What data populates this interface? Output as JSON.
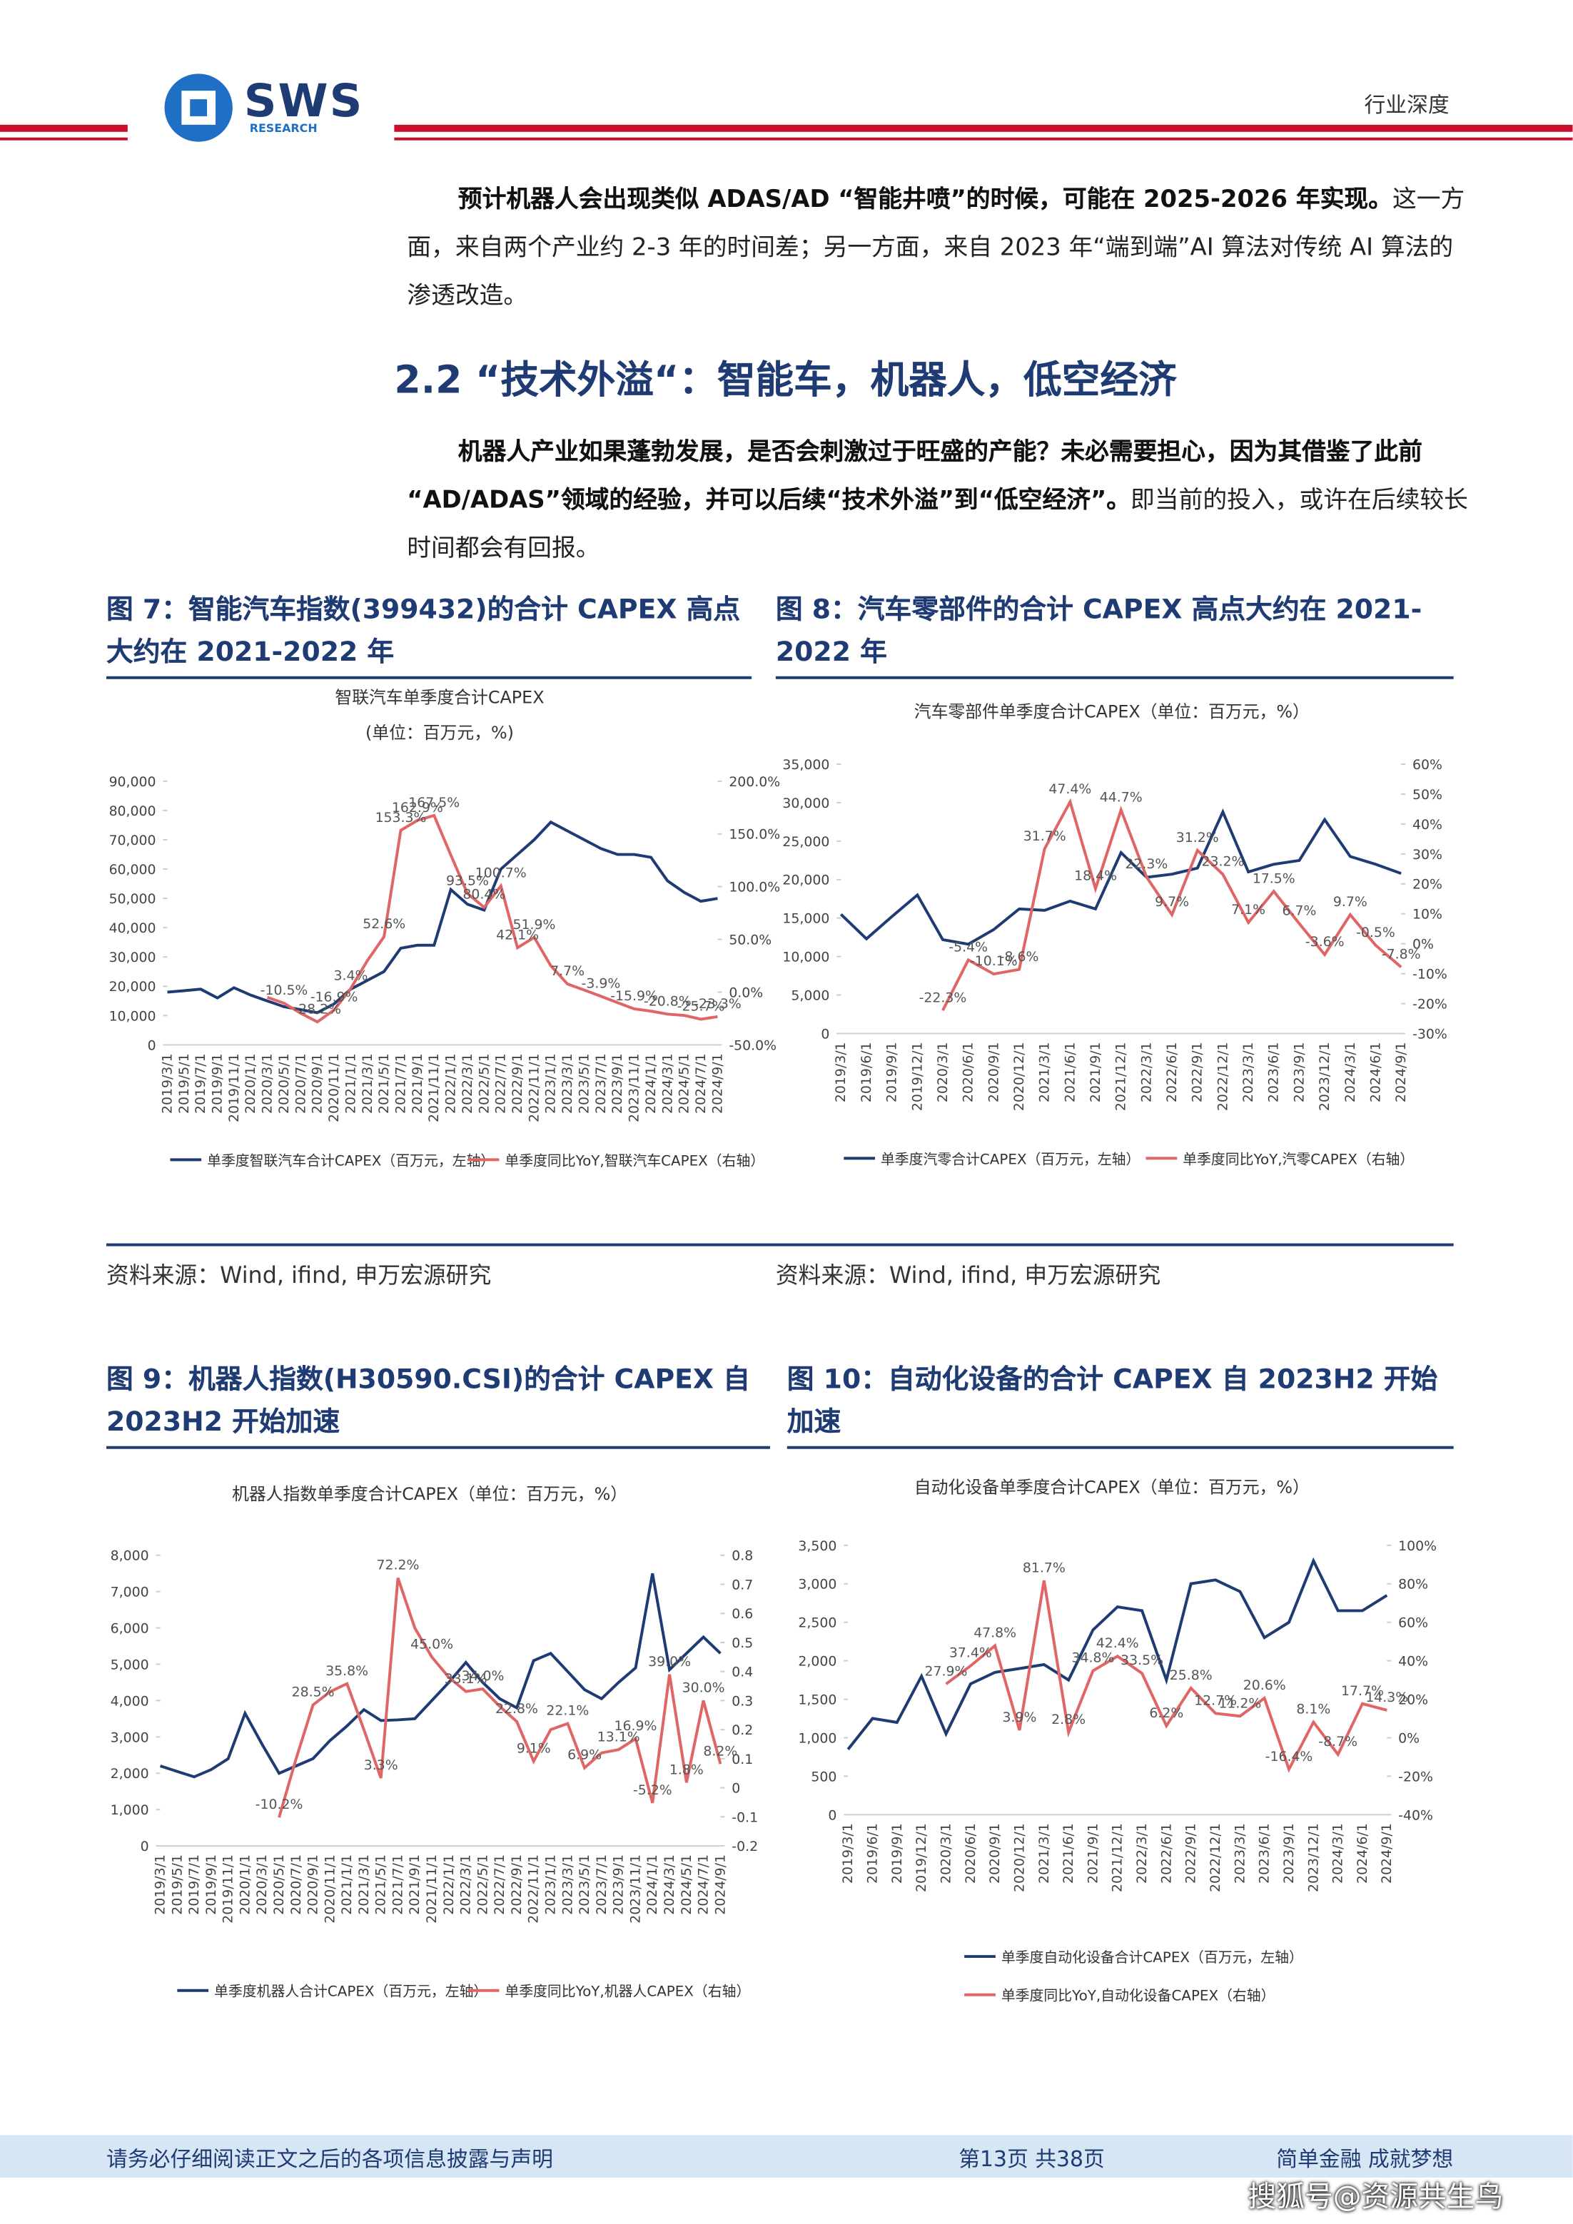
{
  "header": {
    "logo": "SWS",
    "logo_sub": "RESEARCH",
    "tag": "行业深度"
  },
  "intro": {
    "lead": "预计机器人会出现类似 ADAS/AD “智能井喷”的时候，可能在 2025-2026 年实现。",
    "text": "这一方面，来自两个产业约 2-3 年的时间差；另一方面，来自 2023 年“端到端”AI 算法对传统 AI 算法的渗透改造。"
  },
  "section": {
    "heading": "2.2 “技术外溢“：智能车，机器人，低空经济",
    "lead": "机器人产业如果蓬勃发展，是否会刺激过于旺盛的产能？未必需要担心，因为其借鉴了此前“AD/ADAS”领域的经验，并可以后续“技术外溢”到“低空经济”。",
    "text": "即当前的投入，或许在后续较长时间都会有回报。"
  },
  "figures": [
    {
      "title": "图 7：智能汽车指数(399432)的合计 CAPEX 高点大约在 2021-2022 年",
      "source": "资料来源：Wind, ifind, 申万宏源研究"
    },
    {
      "title": "图 8：汽车零部件的合计 CAPEX 高点大约在 2021-2022 年",
      "source": "资料来源：Wind, ifind, 申万宏源研究"
    },
    {
      "title": "图 9：机器人指数(H30590.CSI)的合计 CAPEX 自 2023H2 开始加速"
    },
    {
      "title": "图 10：自动化设备的合计 CAPEX 自 2023H2 开始加速"
    }
  ],
  "chart_data": [
    {
      "type": "line",
      "title": "智联汽车单季度合计CAPEX",
      "subtitle": "(单位：百万元，%)",
      "categories": [
        "2019/3/1",
        "2019/5/1",
        "2019/7/1",
        "2019/9/1",
        "2019/11/1",
        "2020/1/1",
        "2020/3/1",
        "2020/5/1",
        "2020/7/1",
        "2020/9/1",
        "2020/11/1",
        "2021/1/1",
        "2021/3/1",
        "2021/5/1",
        "2021/7/1",
        "2021/9/1",
        "2021/11/1",
        "2022/1/1",
        "2022/3/1",
        "2022/5/1",
        "2022/7/1",
        "2022/9/1",
        "2022/11/1",
        "2023/1/1",
        "2023/3/1",
        "2023/5/1",
        "2023/7/1",
        "2023/9/1",
        "2023/11/1",
        "2024/1/1",
        "2024/3/1",
        "2024/5/1",
        "2024/7/1",
        "2024/9/1"
      ],
      "series": [
        {
          "name": "单季度智联汽车合计CAPEX（百万元，左轴）",
          "color": "#1f3b73",
          "values": [
            18000,
            18500,
            19000,
            16000,
            19500,
            17000,
            15000,
            13000,
            12000,
            11000,
            14000,
            19000,
            22000,
            25000,
            33000,
            34000,
            34000,
            53000,
            48000,
            46000,
            60000,
            65000,
            70000,
            76000,
            73000,
            70000,
            67000,
            65000,
            65000,
            64000,
            56000,
            52000,
            49000,
            50000
          ]
        },
        {
          "name": "单季度同比YoY,智联汽车CAPEX（右轴）",
          "color": "#e06666",
          "axis": "y2",
          "values": [
            null,
            null,
            null,
            null,
            null,
            null,
            -5,
            -10.5,
            -20,
            -28.2,
            -16.9,
            3.4,
            30,
            52.6,
            153.3,
            162.9,
            167.5,
            130,
            93.5,
            80.4,
            100.7,
            42.1,
            51.9,
            25,
            7.7,
            2,
            -3.9,
            -10,
            -15.9,
            -18,
            -20.8,
            -22,
            -25.7,
            -23.3
          ],
          "value_labels": [
            null,
            null,
            null,
            null,
            null,
            null,
            null,
            "-10.5%",
            null,
            "-28.2%",
            "-16.9%",
            "3.4%",
            null,
            "52.6%",
            "153.3%",
            "162.9%",
            "167.5%",
            null,
            "93.5%",
            "80.4%",
            "100.7%",
            "42.1%",
            "51.9%",
            null,
            "7.7%",
            null,
            "-3.9%",
            null,
            "-15.9%",
            null,
            "-20.8%",
            null,
            "-25.7%",
            "-23.3%"
          ]
        }
      ],
      "ylim": [
        0,
        90000
      ],
      "yticks": [
        0,
        {
          "value": 10000,
          "label": "10,000"
        },
        {
          "value": 20000,
          "label": "20,000"
        },
        {
          "value": 30000,
          "label": "30,000"
        },
        {
          "value": 40000,
          "label": "40,000"
        },
        {
          "value": 50000,
          "label": "50,000"
        },
        {
          "value": 60000,
          "label": "60,000"
        },
        {
          "value": 70000,
          "label": "70,000"
        },
        {
          "value": 80000,
          "label": "80,000"
        },
        {
          "value": 90000,
          "label": "90,000"
        }
      ],
      "y2lim": [
        -50,
        200
      ],
      "y2ticks": [
        {
          "value": -50,
          "label": "-50.0%"
        },
        {
          "value": 0,
          "label": "0.0%"
        },
        {
          "value": 50,
          "label": "50.0%"
        },
        {
          "value": 100,
          "label": "100.0%"
        },
        {
          "value": 150,
          "label": "150.0%"
        },
        {
          "value": 200,
          "label": "200.0%"
        }
      ]
    },
    {
      "type": "line",
      "title": "汽车零部件单季度合计CAPEX（单位：百万元，%）",
      "categories": [
        "2019/3/1",
        "2019/6/1",
        "2019/9/1",
        "2019/12/1",
        "2020/3/1",
        "2020/6/1",
        "2020/9/1",
        "2020/12/1",
        "2021/3/1",
        "2021/6/1",
        "2021/9/1",
        "2021/12/1",
        "2022/3/1",
        "2022/6/1",
        "2022/9/1",
        "2022/12/1",
        "2023/3/1",
        "2023/6/1",
        "2023/9/1",
        "2023/12/1",
        "2024/3/1",
        "2024/6/1",
        "2024/9/1"
      ],
      "series": [
        {
          "name": "单季度汽零合计CAPEX（百万元，左轴）",
          "color": "#1f3b73",
          "values": [
            15500,
            12300,
            15200,
            18000,
            12200,
            11600,
            13500,
            16200,
            16000,
            17200,
            16200,
            23500,
            20300,
            20700,
            21500,
            28800,
            21000,
            22000,
            22500,
            27800,
            23000,
            22000,
            20800
          ]
        },
        {
          "name": "单季度同比YoY,汽零CAPEX（右轴）",
          "color": "#e06666",
          "axis": "y2",
          "values": [
            null,
            null,
            null,
            null,
            -22.3,
            -5.4,
            -10.1,
            -8.6,
            31.7,
            47.4,
            18.4,
            44.7,
            22.3,
            9.7,
            31.2,
            23.2,
            7.1,
            17.5,
            6.7,
            -3.6,
            9.7,
            -0.5,
            -7.8
          ],
          "value_labels": [
            null,
            null,
            null,
            null,
            "-22.3%",
            "-5.4%",
            "-10.1%",
            "-8.6%",
            "31.7%",
            "47.4%",
            "18.4%",
            "44.7%",
            "22.3%",
            "9.7%",
            "31.2%",
            "23.2%",
            "7.1%",
            "17.5%",
            "6.7%",
            "-3.6%",
            "9.7%",
            "-0.5%",
            "-7.8%"
          ]
        }
      ],
      "ylim": [
        0,
        35000
      ],
      "yticks": [
        0,
        {
          "value": 5000,
          "label": "5,000"
        },
        {
          "value": 10000,
          "label": "10,000"
        },
        {
          "value": 15000,
          "label": "15,000"
        },
        {
          "value": 20000,
          "label": "20,000"
        },
        {
          "value": 25000,
          "label": "25,000"
        },
        {
          "value": 30000,
          "label": "30,000"
        },
        {
          "value": 35000,
          "label": "35,000"
        }
      ],
      "y2lim": [
        -30,
        60
      ],
      "y2ticks": [
        {
          "value": -30,
          "label": "-30%"
        },
        {
          "value": -20,
          "label": "-20%"
        },
        {
          "value": -10,
          "label": "-10%"
        },
        {
          "value": 0,
          "label": "0%"
        },
        {
          "value": 10,
          "label": "10%"
        },
        {
          "value": 20,
          "label": "20%"
        },
        {
          "value": 30,
          "label": "30%"
        },
        {
          "value": 40,
          "label": "40%"
        },
        {
          "value": 50,
          "label": "50%"
        },
        {
          "value": 60,
          "label": "60%"
        }
      ]
    },
    {
      "type": "line",
      "title": "机器人指数单季度合计CAPEX（单位：百万元，%）",
      "categories": [
        "2019/3/1",
        "2019/5/1",
        "2019/7/1",
        "2019/9/1",
        "2019/11/1",
        "2020/1/1",
        "2020/3/1",
        "2020/5/1",
        "2020/7/1",
        "2020/9/1",
        "2020/11/1",
        "2021/1/1",
        "2021/3/1",
        "2021/5/1",
        "2021/7/1",
        "2021/9/1",
        "2021/11/1",
        "2022/1/1",
        "2022/3/1",
        "2022/5/1",
        "2022/7/1",
        "2022/9/1",
        "2022/11/1",
        "2023/1/1",
        "2023/3/1",
        "2023/5/1",
        "2023/7/1",
        "2023/9/1",
        "2023/11/1",
        "2024/1/1",
        "2024/3/1",
        "2024/5/1",
        "2024/7/1",
        "2024/9/1"
      ],
      "series": [
        {
          "name": "单季度机器人合计CAPEX（百万元，左轴）",
          "color": "#1f3b73",
          "values": [
            2200,
            2050,
            1900,
            2100,
            2400,
            3650,
            2800,
            2000,
            2200,
            2400,
            2900,
            3300,
            3750,
            3450,
            3470,
            3500,
            4000,
            4500,
            5050,
            4500,
            4050,
            3800,
            5100,
            5300,
            4800,
            4300,
            4050,
            4500,
            4900,
            7500,
            4850,
            5300,
            5750,
            5300
          ]
        },
        {
          "name": "单季度同比YoY,机器人CAPEX（右轴）",
          "color": "#e06666",
          "axis": "y2",
          "values": [
            null,
            null,
            null,
            null,
            null,
            null,
            null,
            -0.102,
            0.1,
            0.285,
            0.33,
            0.358,
            0.2,
            0.033,
            0.722,
            0.55,
            0.45,
            0.38,
            0.331,
            0.34,
            0.28,
            0.228,
            0.091,
            0.2,
            0.221,
            0.069,
            0.12,
            0.131,
            0.169,
            -0.052,
            0.39,
            0.018,
            0.3,
            0.082
          ],
          "value_labels": [
            null,
            null,
            null,
            null,
            null,
            null,
            null,
            "-10.2%",
            null,
            "28.5%",
            null,
            "35.8%",
            null,
            "3.3%",
            "72.2%",
            null,
            "45.0%",
            null,
            "33.1%",
            "34.0%",
            null,
            "22.8%",
            "9.1%",
            null,
            "22.1%",
            "6.9%",
            null,
            "13.1%",
            "16.9%",
            "-5.2%",
            "39.0%",
            "1.8%",
            "30.0%",
            "8.2%"
          ]
        }
      ],
      "ylim": [
        0,
        8000
      ],
      "yticks": [
        0,
        {
          "value": 1000,
          "label": "1,000"
        },
        {
          "value": 2000,
          "label": "2,000"
        },
        {
          "value": 3000,
          "label": "3,000"
        },
        {
          "value": 4000,
          "label": "4,000"
        },
        {
          "value": 5000,
          "label": "5,000"
        },
        {
          "value": 6000,
          "label": "6,000"
        },
        {
          "value": 7000,
          "label": "7,000"
        },
        {
          "value": 8000,
          "label": "8,000"
        }
      ],
      "y2lim": [
        -0.2,
        0.8
      ],
      "y2ticks": [
        -0.2,
        -0.1,
        0,
        0.1,
        0.2,
        0.3,
        0.4,
        0.5,
        0.6,
        0.7,
        0.8
      ]
    },
    {
      "type": "line",
      "title": "自动化设备单季度合计CAPEX（单位：百万元，%）",
      "categories": [
        "2019/3/1",
        "2019/6/1",
        "2019/9/1",
        "2019/12/1",
        "2020/3/1",
        "2020/6/1",
        "2020/9/1",
        "2020/12/1",
        "2021/3/1",
        "2021/6/1",
        "2021/9/1",
        "2021/12/1",
        "2022/3/1",
        "2022/6/1",
        "2022/9/1",
        "2022/12/1",
        "2023/3/1",
        "2023/6/1",
        "2023/9/1",
        "2023/12/1",
        "2024/3/1",
        "2024/6/1",
        "2024/9/1"
      ],
      "series": [
        {
          "name": "单季度自动化设备合计CAPEX（百万元，左轴）",
          "color": "#1f3b73",
          "values": [
            850,
            1250,
            1200,
            1800,
            1050,
            1700,
            1850,
            1900,
            1950,
            1750,
            2400,
            2700,
            2650,
            1750,
            3000,
            3050,
            2900,
            2300,
            2500,
            3300,
            2650,
            2650,
            2850
          ]
        },
        {
          "name": "单季度同比YoY,自动化设备CAPEX（右轴）",
          "color": "#e06666",
          "axis": "y2",
          "values": [
            null,
            null,
            null,
            null,
            27.9,
            37.4,
            47.8,
            3.9,
            81.7,
            2.8,
            34.8,
            42.4,
            33.5,
            6.2,
            25.8,
            12.7,
            11.2,
            20.6,
            -16.4,
            8.1,
            -8.7,
            17.7,
            14.3
          ],
          "value_labels": [
            null,
            null,
            null,
            null,
            "27.9%",
            "37.4%",
            "47.8%",
            "3.9%",
            "81.7%",
            "2.8%",
            "34.8%",
            "42.4%",
            "33.5%",
            "6.2%",
            "25.8%",
            "12.7%",
            "11.2%",
            "20.6%",
            "-16.4%",
            "8.1%",
            "-8.7%",
            "17.7%",
            "14.3%"
          ]
        }
      ],
      "ylim": [
        0,
        3500
      ],
      "yticks": [
        0,
        500,
        {
          "value": 1000,
          "label": "1,000"
        },
        {
          "value": 1500,
          "label": "1,500"
        },
        {
          "value": 2000,
          "label": "2,000"
        },
        {
          "value": 2500,
          "label": "2,500"
        },
        {
          "value": 3000,
          "label": "3,000"
        },
        {
          "value": 3500,
          "label": "3,500"
        }
      ],
      "y2lim": [
        -40,
        100
      ],
      "y2ticks": [
        {
          "value": -40,
          "label": "-40%"
        },
        {
          "value": -20,
          "label": "-20%"
        },
        {
          "value": 0,
          "label": "0%"
        },
        {
          "value": 20,
          "label": "20%"
        },
        {
          "value": 40,
          "label": "40%"
        },
        {
          "value": 60,
          "label": "60%"
        },
        {
          "value": 80,
          "label": "80%"
        },
        {
          "value": 100,
          "label": "100%"
        }
      ]
    }
  ],
  "footer": {
    "disclaimer": "请务必仔细阅读正文之后的各项信息披露与声明",
    "page": "第13页 共38页",
    "slogan": "简单金融 成就梦想",
    "watermark": "搜狐号@资源共生鸟"
  }
}
